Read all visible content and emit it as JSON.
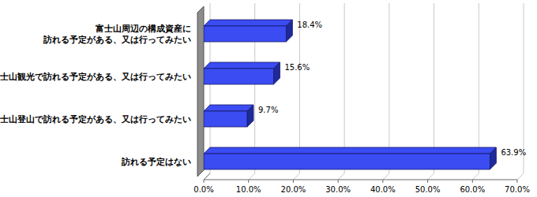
{
  "chart_data": {
    "type": "bar",
    "orientation": "horizontal",
    "categories": [
      "富士山周辺の構成資産に\n訪れる予定がある、又は行ってみたい",
      "富士山観光で訪れる予定がある、又は行ってみたい",
      "富士山登山で訪れる予定がある、又は行ってみたい",
      "訪れる予定はない"
    ],
    "values": [
      18.4,
      15.6,
      9.7,
      63.9
    ],
    "value_labels": [
      "18.4%",
      "15.6%",
      "9.7%",
      "63.9%"
    ],
    "data_labels": true,
    "color": "#3a4cf2",
    "xlim": [
      0,
      70
    ],
    "xticks": [
      {
        "value": 0,
        "label": "0.0%"
      },
      {
        "value": 10,
        "label": "10.0%"
      },
      {
        "value": 20,
        "label": "20.0%"
      },
      {
        "value": 30,
        "label": "30.0%"
      },
      {
        "value": 40,
        "label": "40.0%"
      },
      {
        "value": 50,
        "label": "50.0%"
      },
      {
        "value": 60,
        "label": "60.0%"
      },
      {
        "value": 70,
        "label": "70.0%"
      }
    ],
    "grid": true
  }
}
